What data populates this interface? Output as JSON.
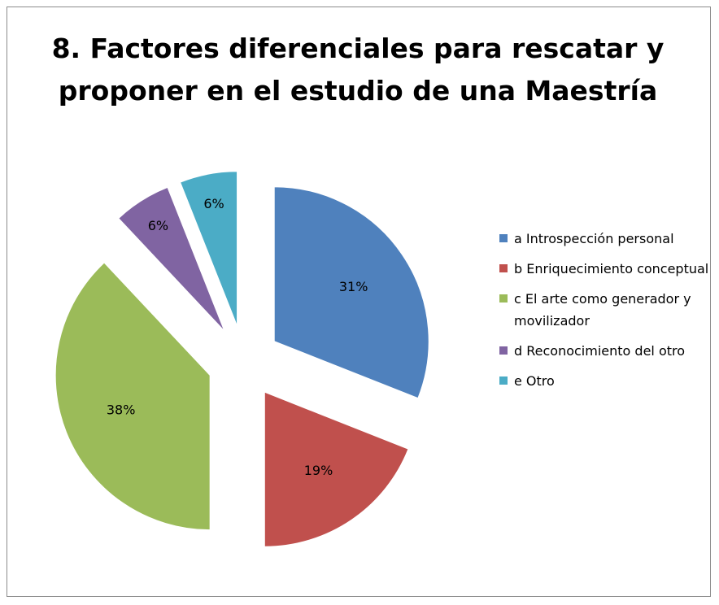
{
  "chart_data": {
    "type": "pie",
    "title": "8. Factores diferenciales para rescatar y proponer en el estudio de una Maestría",
    "categories": [
      "a Introspección personal",
      "b Enriquecimiento conceptual",
      "c El arte como generador y movilizador",
      "d Reconocimiento del otro",
      "e Otro"
    ],
    "values": [
      31,
      19,
      38,
      6,
      6
    ],
    "value_labels": [
      "31%",
      "19%",
      "38%",
      "6%",
      "6%"
    ],
    "colors": [
      "#4f81bd",
      "#c0504d",
      "#9bbb59",
      "#8064a2",
      "#4bacc6"
    ],
    "legend": "right"
  }
}
